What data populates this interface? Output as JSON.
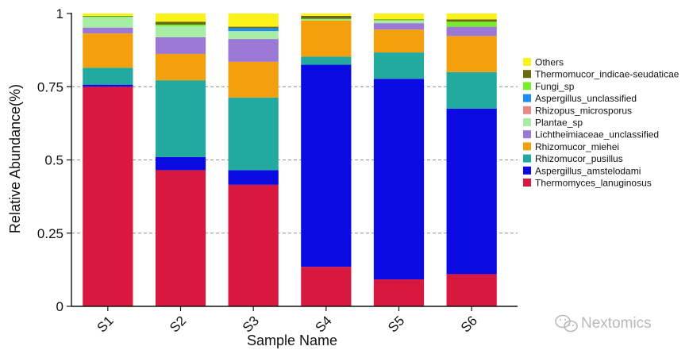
{
  "chart_data": {
    "type": "bar",
    "stacked": true,
    "xlabel": "Sample Name",
    "ylabel": "Relative Abundance(%)",
    "ylim": [
      0,
      1
    ],
    "yticks": [
      "0",
      "0.25",
      "0.5",
      "0.75",
      "1"
    ],
    "categories": [
      "S1",
      "S2",
      "S3",
      "S4",
      "S5",
      "S6"
    ],
    "legend_position": "right",
    "series": [
      {
        "name": "Thermomyces_lanuginosus",
        "color": "#d8183f",
        "values": [
          0.75,
          0.465,
          0.415,
          0.135,
          0.092,
          0.11
        ]
      },
      {
        "name": "Aspergillus_amstelodami",
        "color": "#0a0ae2",
        "values": [
          0.007,
          0.045,
          0.05,
          0.69,
          0.685,
          0.565
        ]
      },
      {
        "name": "Rhizomucor_pusillus",
        "color": "#23aaa0",
        "values": [
          0.058,
          0.262,
          0.248,
          0.028,
          0.09,
          0.125
        ]
      },
      {
        "name": "Rhizomucor_miehei",
        "color": "#f4a00e",
        "values": [
          0.117,
          0.09,
          0.122,
          0.123,
          0.078,
          0.123
        ]
      },
      {
        "name": "Lichtheimiaceae_unclassified",
        "color": "#9a78d4",
        "values": [
          0.02,
          0.057,
          0.078,
          0.0,
          0.022,
          0.032
        ]
      },
      {
        "name": "Plantae_sp",
        "color": "#a6eea6",
        "values": [
          0.035,
          0.038,
          0.027,
          0.003,
          0.008,
          0.0
        ]
      },
      {
        "name": "Rhizopus_microsporus",
        "color": "#e98a8a",
        "values": [
          0.0,
          0.0,
          0.0,
          0.0,
          0.0,
          0.0
        ]
      },
      {
        "name": "Aspergillus_unclassified",
        "color": "#1f8ef2",
        "values": [
          0.0,
          0.0,
          0.01,
          0.0,
          0.0,
          0.0
        ]
      },
      {
        "name": "Fungi_sp",
        "color": "#78ee2a",
        "values": [
          0.003,
          0.005,
          0.0,
          0.003,
          0.003,
          0.017
        ]
      },
      {
        "name": "Thermomucor_indicae-seudaticae",
        "color": "#6a6a12",
        "values": [
          0.002,
          0.01,
          0.005,
          0.01,
          0.002,
          0.008
        ]
      },
      {
        "name": "Others",
        "color": "#fbf21c",
        "values": [
          0.008,
          0.028,
          0.045,
          0.008,
          0.02,
          0.02
        ]
      }
    ]
  },
  "watermark": {
    "text": "Nextomics",
    "icon": "wechat-icon"
  }
}
